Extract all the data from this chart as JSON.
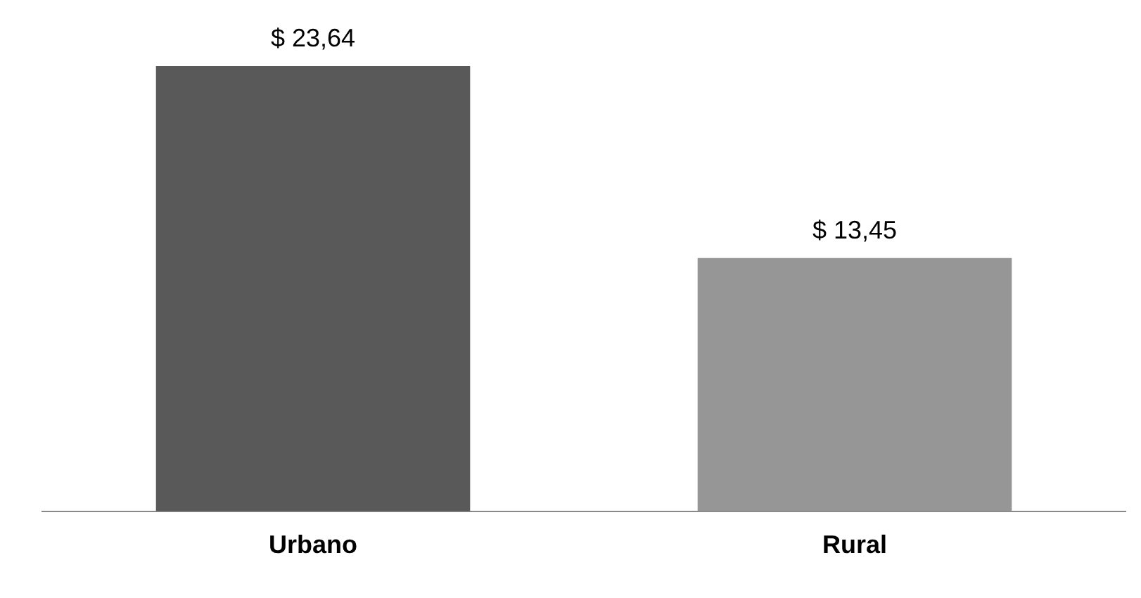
{
  "chart_data": {
    "type": "bar",
    "categories": [
      "Urbano",
      "Rural"
    ],
    "values": [
      23.64,
      13.45
    ],
    "colors": [
      "#595959",
      "#969696"
    ],
    "value_labels": [
      "$ 23,64",
      "$ 13,45"
    ],
    "grid": false,
    "legend": false
  }
}
